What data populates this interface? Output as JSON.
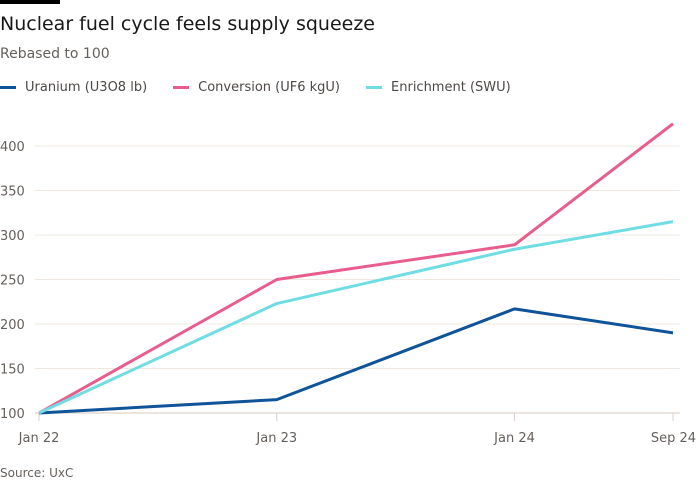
{
  "header": {
    "title": "Nuclear fuel cycle feels supply squeeze",
    "subtitle": "Rebased to 100"
  },
  "footer": {
    "source": "Source: UxC"
  },
  "chart_data": {
    "type": "line",
    "title": "Nuclear fuel cycle feels supply squeeze",
    "subtitle": "Rebased to 100",
    "xlabel": "",
    "ylabel": "",
    "categories": [
      "Jan 22",
      "Jan 23",
      "Jan 24",
      "Sep 24"
    ],
    "x_positions_months": [
      0,
      12,
      24,
      32
    ],
    "ylim": [
      100,
      430
    ],
    "yticks": [
      100,
      150,
      200,
      250,
      300,
      350,
      400
    ],
    "grid": true,
    "legend_position": "top-left",
    "series": [
      {
        "name": "Uranium (U3O8 lb)",
        "color": "#0f5499",
        "values": [
          100,
          115,
          217,
          190
        ]
      },
      {
        "name": "Conversion (UF6 kgU)",
        "color": "#e95d8c",
        "values": [
          100,
          250,
          289,
          425
        ]
      },
      {
        "name": "Enrichment (SWU)",
        "color": "#6fdde3",
        "values": [
          100,
          223,
          284,
          315
        ]
      }
    ],
    "source": "Source: UxC"
  }
}
